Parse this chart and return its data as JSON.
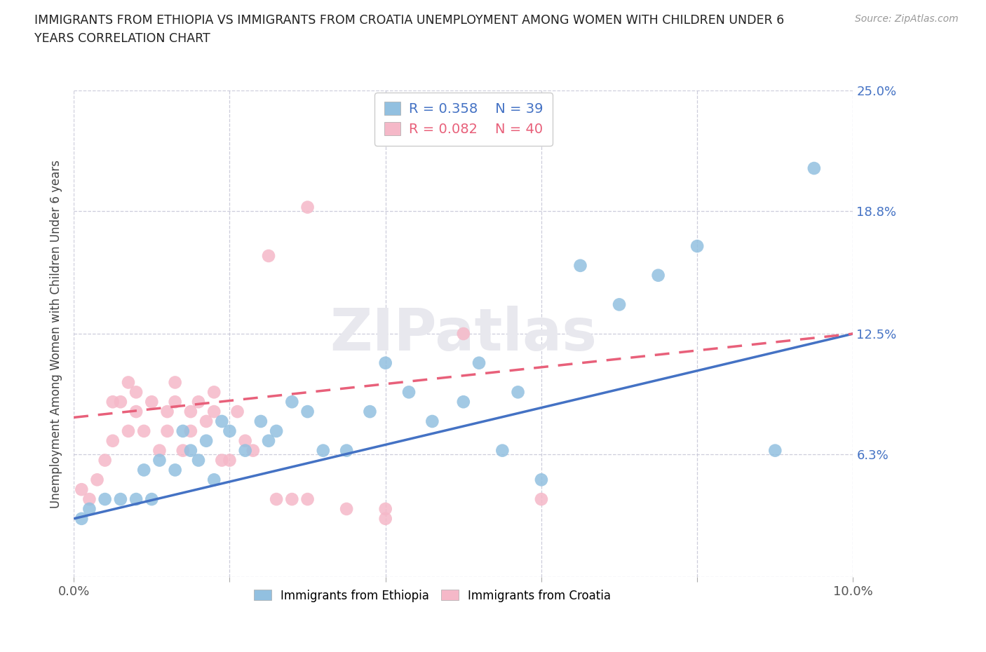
{
  "title_line1": "IMMIGRANTS FROM ETHIOPIA VS IMMIGRANTS FROM CROATIA UNEMPLOYMENT AMONG WOMEN WITH CHILDREN UNDER 6",
  "title_line2": "YEARS CORRELATION CHART",
  "source": "Source: ZipAtlas.com",
  "ylabel": "Unemployment Among Women with Children Under 6 years",
  "xlim": [
    0.0,
    0.1
  ],
  "ylim": [
    0.0,
    0.25
  ],
  "ytick_vals": [
    0.0,
    0.063,
    0.125,
    0.188,
    0.25
  ],
  "ytick_labels": [
    "",
    "6.3%",
    "12.5%",
    "18.8%",
    "25.0%"
  ],
  "xtick_vals": [
    0.0,
    0.02,
    0.04,
    0.06,
    0.08,
    0.1
  ],
  "xtick_labels": [
    "0.0%",
    "",
    "",
    "",
    "",
    "10.0%"
  ],
  "ethiopia_R": "0.358",
  "ethiopia_N": "39",
  "croatia_R": "0.082",
  "croatia_N": "40",
  "color_ethiopia": "#92C0E0",
  "color_croatia": "#F5B8C8",
  "line_color_ethiopia": "#4472C4",
  "line_color_croatia": "#E8607A",
  "background_color": "#FFFFFF",
  "ethiopia_line_y0": 0.03,
  "ethiopia_line_y1": 0.125,
  "croatia_line_y0": 0.082,
  "croatia_line_y1": 0.125,
  "ethiopia_x": [
    0.001,
    0.002,
    0.004,
    0.006,
    0.008,
    0.009,
    0.01,
    0.011,
    0.013,
    0.014,
    0.015,
    0.016,
    0.017,
    0.018,
    0.019,
    0.02,
    0.022,
    0.024,
    0.025,
    0.026,
    0.028,
    0.03,
    0.032,
    0.035,
    0.038,
    0.04,
    0.043,
    0.046,
    0.05,
    0.052,
    0.055,
    0.057,
    0.06,
    0.065,
    0.07,
    0.075,
    0.08,
    0.09,
    0.095
  ],
  "ethiopia_y": [
    0.03,
    0.035,
    0.04,
    0.04,
    0.04,
    0.055,
    0.04,
    0.06,
    0.055,
    0.075,
    0.065,
    0.06,
    0.07,
    0.05,
    0.08,
    0.075,
    0.065,
    0.08,
    0.07,
    0.075,
    0.09,
    0.085,
    0.065,
    0.065,
    0.085,
    0.11,
    0.095,
    0.08,
    0.09,
    0.11,
    0.065,
    0.095,
    0.05,
    0.16,
    0.14,
    0.155,
    0.17,
    0.065,
    0.21
  ],
  "croatia_x": [
    0.001,
    0.002,
    0.003,
    0.004,
    0.005,
    0.005,
    0.006,
    0.007,
    0.007,
    0.008,
    0.008,
    0.009,
    0.01,
    0.011,
    0.012,
    0.012,
    0.013,
    0.013,
    0.014,
    0.015,
    0.015,
    0.016,
    0.017,
    0.018,
    0.018,
    0.019,
    0.02,
    0.021,
    0.022,
    0.023,
    0.025,
    0.026,
    0.028,
    0.03,
    0.03,
    0.035,
    0.04,
    0.04,
    0.05,
    0.06
  ],
  "croatia_y": [
    0.045,
    0.04,
    0.05,
    0.06,
    0.07,
    0.09,
    0.09,
    0.075,
    0.1,
    0.085,
    0.095,
    0.075,
    0.09,
    0.065,
    0.085,
    0.075,
    0.09,
    0.1,
    0.065,
    0.075,
    0.085,
    0.09,
    0.08,
    0.095,
    0.085,
    0.06,
    0.06,
    0.085,
    0.07,
    0.065,
    0.165,
    0.04,
    0.04,
    0.19,
    0.04,
    0.035,
    0.035,
    0.03,
    0.125,
    0.04
  ]
}
